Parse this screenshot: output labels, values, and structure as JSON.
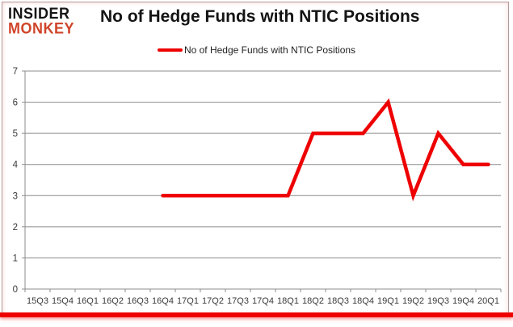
{
  "branding": {
    "line1": "INSIDER",
    "line2": "MONKEY"
  },
  "header": {
    "title": "No of Hedge Funds with NTIC Positions"
  },
  "legend": {
    "label": "No of Hedge Funds with NTIC Positions",
    "line_color": "#ee0000"
  },
  "colors": {
    "series_red": "#ee0000",
    "grid": "#8c8c8c",
    "axis": "#8c8c8c",
    "axis_text": "#3a3a3a",
    "logo_black": "#151515",
    "logo_red": "#d0452a",
    "frame_border": "#b39a9a",
    "bottom_bar": "#ee0000"
  },
  "chart_data": {
    "type": "line",
    "title": "No of Hedge Funds with NTIC Positions",
    "categories": [
      "15Q3",
      "15Q4",
      "16Q1",
      "16Q2",
      "16Q3",
      "16Q4",
      "17Q1",
      "17Q2",
      "17Q3",
      "17Q4",
      "18Q1",
      "18Q2",
      "18Q3",
      "18Q4",
      "19Q1",
      "19Q2",
      "19Q3",
      "19Q4",
      "20Q1"
    ],
    "series": [
      {
        "name": "No of Hedge Funds with NTIC Positions",
        "color": "#ee0000",
        "values": [
          null,
          null,
          null,
          null,
          null,
          3,
          3,
          3,
          3,
          3,
          3,
          5,
          5,
          5,
          6,
          3,
          5,
          4,
          4
        ]
      }
    ],
    "xlabel": "",
    "ylabel": "",
    "ylim": [
      0,
      7
    ],
    "ytick_interval": 1,
    "grid": "horizontal",
    "legend_position": "top-center"
  }
}
